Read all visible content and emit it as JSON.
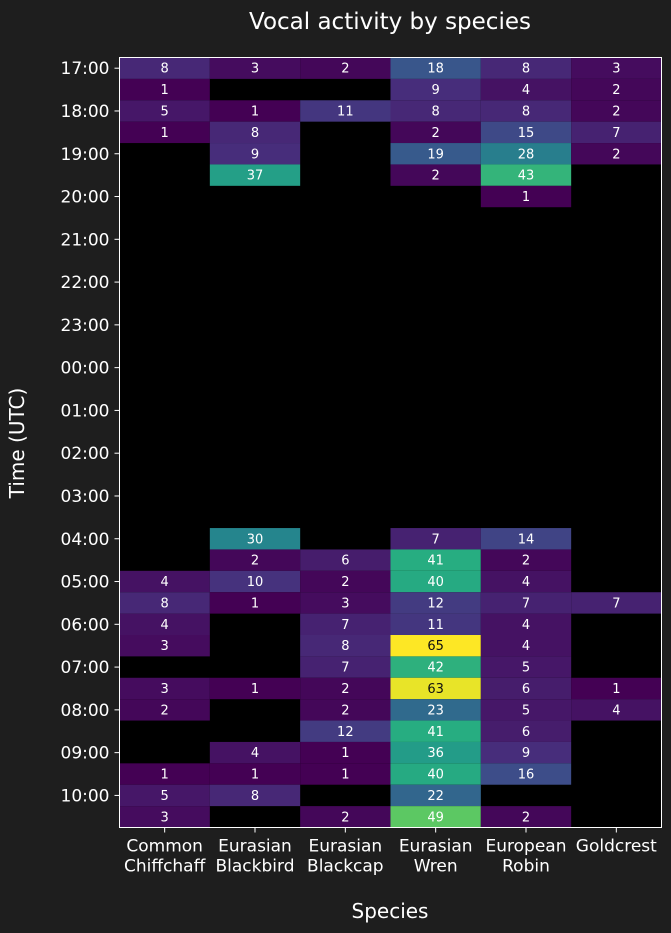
{
  "chart_data": {
    "type": "heatmap",
    "title": "Vocal activity by species",
    "xlabel": "Species",
    "ylabel": "Time (UTC)",
    "categories": [
      [
        "Common",
        "Chiffchaff"
      ],
      [
        "Eurasian",
        "Blackbird"
      ],
      [
        "Eurasian",
        "Blackcap"
      ],
      [
        "Eurasian",
        "Wren"
      ],
      [
        "European",
        "Robin"
      ],
      [
        "Goldcrest"
      ]
    ],
    "y_tick_labels": [
      "17:00",
      "18:00",
      "19:00",
      "20:00",
      "21:00",
      "22:00",
      "23:00",
      "00:00",
      "01:00",
      "02:00",
      "03:00",
      "04:00",
      "05:00",
      "06:00",
      "07:00",
      "08:00",
      "09:00",
      "10:00"
    ],
    "rows": 36,
    "vmin": 1,
    "vmax": 65,
    "colormap": "viridis",
    "empty_color": "#000000",
    "values": [
      [
        8,
        3,
        2,
        18,
        8,
        3
      ],
      [
        1,
        null,
        null,
        9,
        4,
        2
      ],
      [
        5,
        1,
        11,
        8,
        8,
        2
      ],
      [
        1,
        8,
        null,
        2,
        15,
        7
      ],
      [
        null,
        9,
        null,
        19,
        28,
        2
      ],
      [
        null,
        37,
        null,
        2,
        43,
        null
      ],
      [
        null,
        null,
        null,
        null,
        1,
        null
      ],
      [
        null,
        null,
        null,
        null,
        null,
        null
      ],
      [
        null,
        null,
        null,
        null,
        null,
        null
      ],
      [
        null,
        null,
        null,
        null,
        null,
        null
      ],
      [
        null,
        null,
        null,
        null,
        null,
        null
      ],
      [
        null,
        null,
        null,
        null,
        null,
        null
      ],
      [
        null,
        null,
        null,
        null,
        null,
        null
      ],
      [
        null,
        null,
        null,
        null,
        null,
        null
      ],
      [
        null,
        null,
        null,
        null,
        null,
        null
      ],
      [
        null,
        null,
        null,
        null,
        null,
        null
      ],
      [
        null,
        null,
        null,
        null,
        null,
        null
      ],
      [
        null,
        null,
        null,
        null,
        null,
        null
      ],
      [
        null,
        null,
        null,
        null,
        null,
        null
      ],
      [
        null,
        null,
        null,
        null,
        null,
        null
      ],
      [
        null,
        null,
        null,
        null,
        null,
        null
      ],
      [
        null,
        null,
        null,
        null,
        null,
        null
      ],
      [
        null,
        30,
        null,
        7,
        14,
        null
      ],
      [
        null,
        2,
        6,
        41,
        2,
        null
      ],
      [
        4,
        10,
        2,
        40,
        4,
        null
      ],
      [
        8,
        1,
        3,
        12,
        7,
        7
      ],
      [
        4,
        null,
        7,
        11,
        4,
        null
      ],
      [
        3,
        null,
        8,
        65,
        4,
        null
      ],
      [
        null,
        null,
        7,
        42,
        5,
        null
      ],
      [
        3,
        1,
        2,
        63,
        6,
        1
      ],
      [
        2,
        null,
        2,
        23,
        5,
        4
      ],
      [
        null,
        null,
        12,
        41,
        6,
        null
      ],
      [
        null,
        4,
        1,
        36,
        9,
        null
      ],
      [
        1,
        1,
        1,
        40,
        16,
        null
      ],
      [
        5,
        8,
        null,
        22,
        null,
        null
      ],
      [
        3,
        null,
        2,
        49,
        2,
        null
      ]
    ]
  }
}
